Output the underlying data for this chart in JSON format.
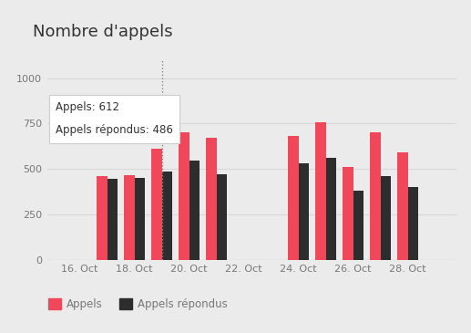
{
  "title": "Nombre d'appels",
  "background_color": "#ebebeb",
  "plot_bg_color": "#ebebeb",
  "bar_color_appels": "#f0485a",
  "bar_color_repondus": "#2d2d2d",
  "legend_appels": "Appels",
  "legend_repondus": "Appels répondus",
  "yticks": [
    0,
    250,
    500,
    750,
    1000
  ],
  "ylim": [
    0,
    1100
  ],
  "xtick_labels": [
    "16. Oct",
    "18. Oct",
    "20. Oct",
    "22. Oct",
    "24. Oct",
    "26. Oct",
    "28. Oct"
  ],
  "xtick_positions": [
    16,
    18,
    20,
    22,
    24,
    26,
    28
  ],
  "grid_color": "#d8d8d8",
  "tooltip_date": 19,
  "tooltip_appels": 612,
  "tooltip_repondus": 486,
  "days": [
    17,
    18,
    19,
    20,
    21,
    24,
    25,
    26,
    27,
    28
  ],
  "appels": [
    460,
    465,
    612,
    700,
    670,
    680,
    755,
    510,
    700,
    590
  ],
  "repondus": [
    445,
    450,
    486,
    545,
    470,
    530,
    560,
    380,
    460,
    400
  ]
}
